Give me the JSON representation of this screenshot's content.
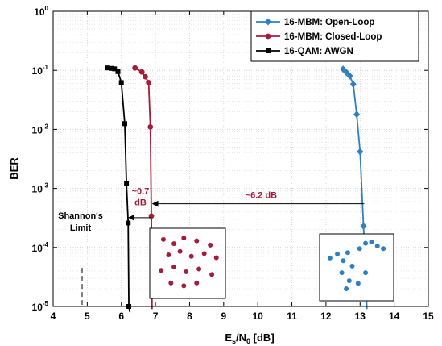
{
  "chart_data": {
    "type": "line",
    "xlabel": "E",
    "xlabel_sub": "s",
    "xlabel_mid": "/N",
    "xlabel_sub2": "0",
    "xlabel_tail": " [dB]",
    "ylabel": "BER",
    "xlim": [
      4,
      15
    ],
    "ylim": [
      1e-05,
      1
    ],
    "yscale": "log",
    "grid": true,
    "legend_position": "top-right",
    "x_ticks": [
      "4",
      "5",
      "6",
      "7",
      "8",
      "9",
      "10",
      "11",
      "12",
      "13",
      "14",
      "15"
    ],
    "y_ticks": [
      {
        "base": "10",
        "exp": "0"
      },
      {
        "base": "10",
        "exp": "-1"
      },
      {
        "base": "10",
        "exp": "-2"
      },
      {
        "base": "10",
        "exp": "-3"
      },
      {
        "base": "10",
        "exp": "-4"
      },
      {
        "base": "10",
        "exp": "-5"
      }
    ],
    "series": [
      {
        "name": "16-MBM: Open-Loop",
        "color": "#2f80c0",
        "marker": "diamond",
        "x": [
          12.5,
          12.6,
          12.7,
          12.8,
          12.9,
          13.0,
          13.1,
          13.2
        ],
        "y": [
          0.105,
          0.092,
          0.08,
          0.058,
          0.018,
          0.0042,
          0.00023,
          9e-06
        ]
      },
      {
        "name": "16-MBM: Closed-Loop",
        "color": "#a51d3b",
        "marker": "circle",
        "x": [
          6.4,
          6.6,
          6.7,
          6.8,
          6.85,
          6.88,
          6.9
        ],
        "y": [
          0.11,
          0.094,
          0.078,
          0.062,
          0.011,
          0.00034,
          9e-06
        ]
      },
      {
        "name": "16-QAM: AWGN",
        "color": "#000000",
        "marker": "square",
        "x": [
          5.6,
          5.7,
          5.8,
          5.9,
          6.0,
          6.1,
          6.15,
          6.2,
          6.22,
          6.25
        ],
        "y": [
          0.11,
          0.108,
          0.106,
          0.095,
          0.062,
          0.0125,
          0.0012,
          0.00026,
          1e-05,
          8e-06
        ]
      }
    ],
    "annotations": {
      "gap_awgn": "~0.7\ndB",
      "gap_open_loop": "~6.2 dB",
      "shannon": "Shannon's\nLimit",
      "shannon_x": 4.85,
      "arrow_y": 0.00055,
      "arrow2_y": 0.00032
    },
    "insets": [
      {
        "name": "closed-loop-constellation",
        "color": "#a51d3b",
        "points": [
          [
            0.18,
            0.16
          ],
          [
            0.32,
            0.22
          ],
          [
            0.45,
            0.14
          ],
          [
            0.62,
            0.18
          ],
          [
            0.8,
            0.24
          ],
          [
            0.25,
            0.38
          ],
          [
            0.4,
            0.33
          ],
          [
            0.55,
            0.4
          ],
          [
            0.72,
            0.36
          ],
          [
            0.88,
            0.42
          ],
          [
            0.15,
            0.6
          ],
          [
            0.32,
            0.55
          ],
          [
            0.48,
            0.62
          ],
          [
            0.65,
            0.58
          ],
          [
            0.82,
            0.66
          ],
          [
            0.28,
            0.78
          ],
          [
            0.45,
            0.82
          ],
          [
            0.62,
            0.78
          ]
        ]
      },
      {
        "name": "open-loop-constellation",
        "color": "#2f80c0",
        "points": [
          [
            0.62,
            0.14
          ],
          [
            0.7,
            0.12
          ],
          [
            0.78,
            0.18
          ],
          [
            0.86,
            0.22
          ],
          [
            0.54,
            0.22
          ],
          [
            0.14,
            0.36
          ],
          [
            0.24,
            0.3
          ],
          [
            0.32,
            0.4
          ],
          [
            0.38,
            0.28
          ],
          [
            0.44,
            0.48
          ],
          [
            0.3,
            0.58
          ],
          [
            0.4,
            0.7
          ],
          [
            0.52,
            0.74
          ],
          [
            0.62,
            0.58
          ],
          [
            0.36,
            0.82
          ]
        ]
      }
    ]
  }
}
